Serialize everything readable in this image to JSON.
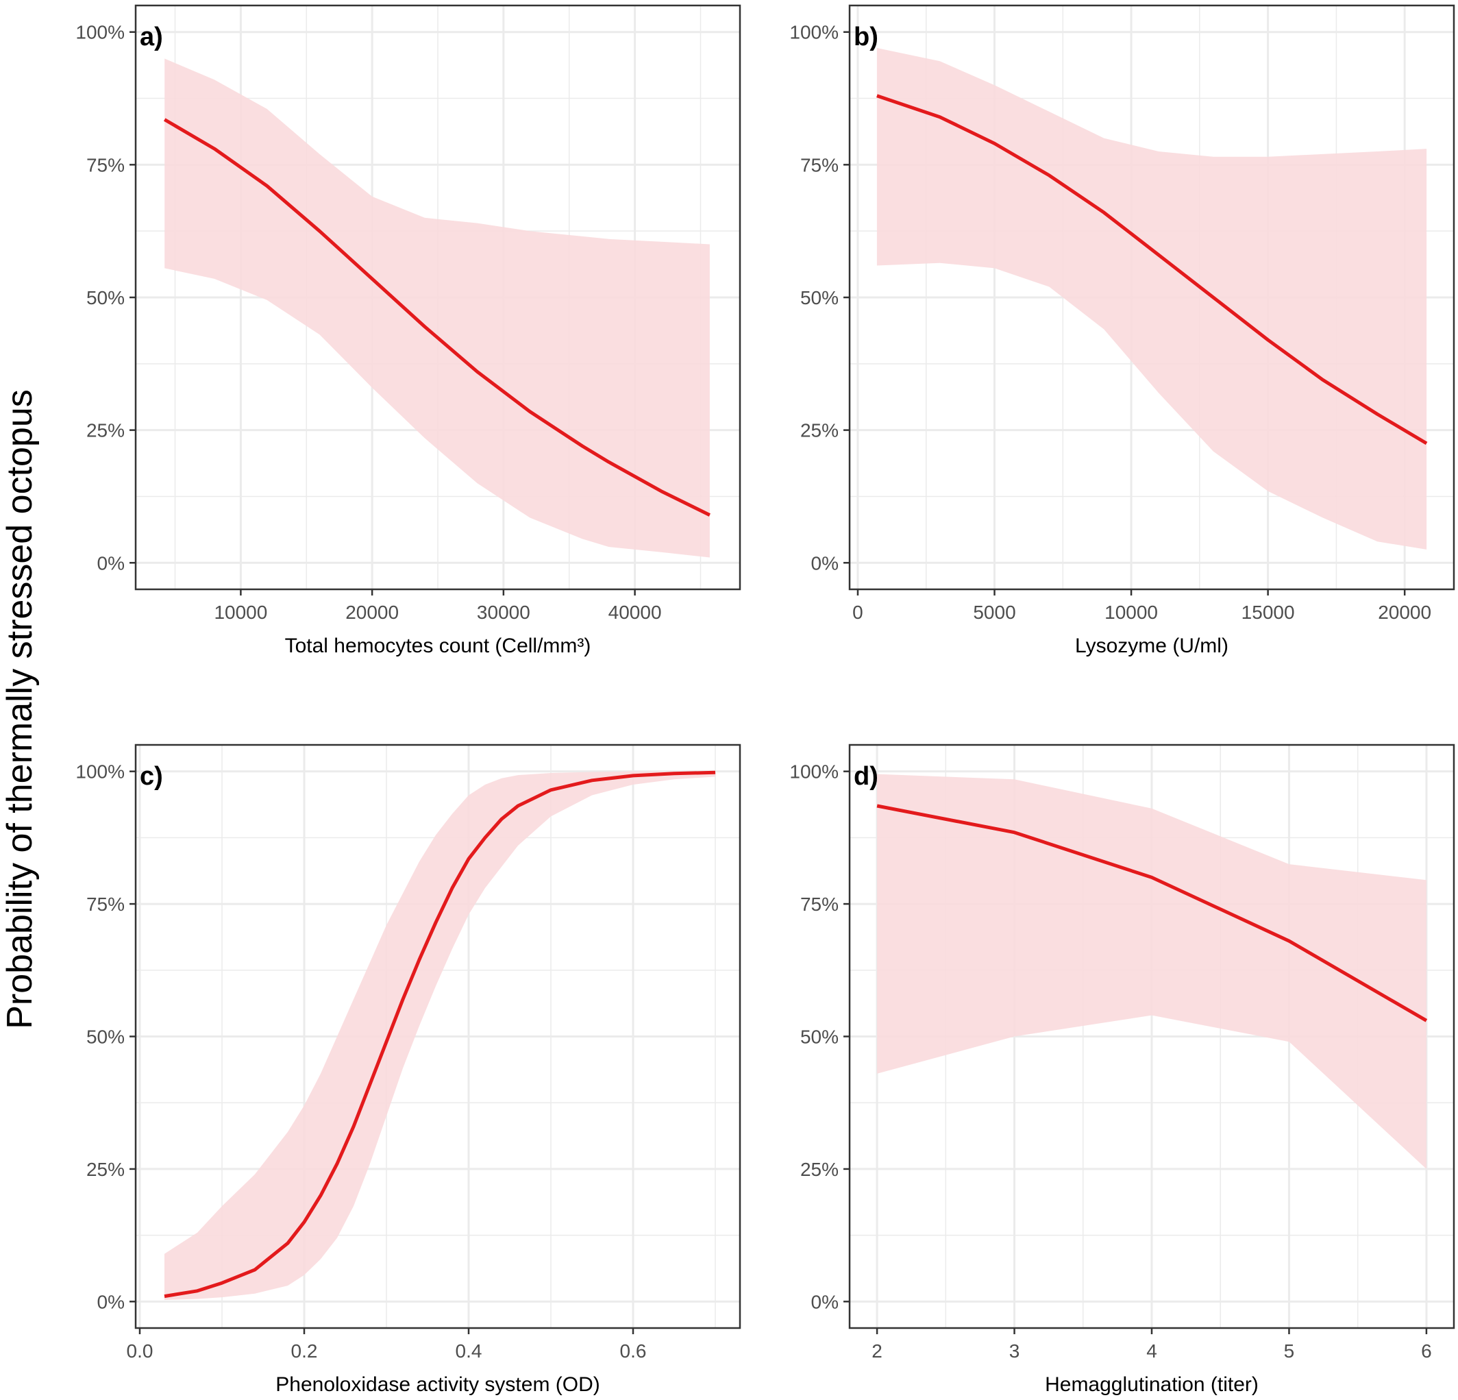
{
  "figure": {
    "shared_ylabel": "Probability of thermally stressed octopus",
    "line_color": "#e31a1c",
    "band_color": "#fadadd",
    "grid_color": "#ebebeb"
  },
  "chart_data": [
    {
      "type": "line",
      "panel": "a)",
      "xlabel": "Total hemocytes count (Cell/mm³)",
      "ylabel": "Probability of thermally stressed octopus",
      "xlim": [
        2000,
        48000
      ],
      "ylim": [
        -0.05,
        1.05
      ],
      "xticks": [
        10000,
        20000,
        30000,
        40000
      ],
      "xtick_labels": [
        "10000",
        "20000",
        "30000",
        "40000"
      ],
      "yticks": [
        0,
        0.25,
        0.5,
        0.75,
        1.0
      ],
      "ytick_labels": [
        "0%",
        "25%",
        "50%",
        "75%",
        "100%"
      ],
      "grid": true,
      "series": [
        {
          "x": [
            4200,
            8000,
            12000,
            16000,
            20000,
            24000,
            28000,
            32000,
            36000,
            38000,
            42000,
            45700
          ],
          "y": [
            0.835,
            0.78,
            0.71,
            0.625,
            0.535,
            0.445,
            0.36,
            0.285,
            0.22,
            0.19,
            0.135,
            0.09
          ],
          "lower": [
            0.555,
            0.535,
            0.495,
            0.43,
            0.33,
            0.235,
            0.15,
            0.085,
            0.045,
            0.03,
            0.02,
            0.01
          ],
          "upper": [
            0.95,
            0.91,
            0.855,
            0.77,
            0.69,
            0.65,
            0.64,
            0.625,
            0.615,
            0.61,
            0.605,
            0.6
          ]
        }
      ]
    },
    {
      "type": "line",
      "panel": "b)",
      "xlabel": "Lysozyme (U/ml)",
      "ylabel": "Probability of thermally stressed octopus",
      "xlim": [
        -300,
        21800
      ],
      "ylim": [
        -0.05,
        1.05
      ],
      "xticks": [
        0,
        5000,
        10000,
        15000,
        20000
      ],
      "xtick_labels": [
        "0",
        "5000",
        "10000",
        "15000",
        "20000"
      ],
      "yticks": [
        0,
        0.25,
        0.5,
        0.75,
        1.0
      ],
      "ytick_labels": [
        "0%",
        "25%",
        "50%",
        "75%",
        "100%"
      ],
      "grid": true,
      "series": [
        {
          "x": [
            700,
            3000,
            5000,
            7000,
            9000,
            11000,
            13000,
            15000,
            17000,
            19000,
            20800
          ],
          "y": [
            0.88,
            0.84,
            0.79,
            0.73,
            0.66,
            0.58,
            0.5,
            0.42,
            0.345,
            0.28,
            0.225
          ],
          "lower": [
            0.56,
            0.565,
            0.555,
            0.52,
            0.44,
            0.32,
            0.21,
            0.135,
            0.085,
            0.04,
            0.025
          ],
          "upper": [
            0.97,
            0.945,
            0.9,
            0.85,
            0.8,
            0.775,
            0.765,
            0.765,
            0.77,
            0.775,
            0.78
          ]
        }
      ]
    },
    {
      "type": "line",
      "panel": "c)",
      "xlabel": "Phenoloxidase activity system (OD)",
      "ylabel": "Probability of thermally stressed octopus",
      "xlim": [
        -0.005,
        0.73
      ],
      "ylim": [
        -0.05,
        1.05
      ],
      "xticks": [
        0.0,
        0.2,
        0.4,
        0.6
      ],
      "xtick_labels": [
        "0.0",
        "0.2",
        "0.4",
        "0.6"
      ],
      "yticks": [
        0,
        0.25,
        0.5,
        0.75,
        1.0
      ],
      "ytick_labels": [
        "0%",
        "25%",
        "50%",
        "75%",
        "100%"
      ],
      "grid": true,
      "series": [
        {
          "x": [
            0.03,
            0.07,
            0.1,
            0.14,
            0.18,
            0.2,
            0.22,
            0.24,
            0.26,
            0.28,
            0.3,
            0.32,
            0.34,
            0.36,
            0.38,
            0.4,
            0.42,
            0.44,
            0.46,
            0.5,
            0.55,
            0.6,
            0.65,
            0.7
          ],
          "y": [
            0.01,
            0.02,
            0.035,
            0.06,
            0.11,
            0.15,
            0.2,
            0.26,
            0.33,
            0.41,
            0.49,
            0.57,
            0.645,
            0.715,
            0.78,
            0.835,
            0.875,
            0.91,
            0.935,
            0.965,
            0.983,
            0.992,
            0.996,
            0.998
          ],
          "lower": [
            0.003,
            0.005,
            0.008,
            0.015,
            0.03,
            0.05,
            0.08,
            0.12,
            0.18,
            0.26,
            0.35,
            0.44,
            0.52,
            0.595,
            0.665,
            0.73,
            0.78,
            0.82,
            0.86,
            0.915,
            0.955,
            0.975,
            0.985,
            0.99
          ],
          "upper": [
            0.09,
            0.13,
            0.18,
            0.24,
            0.32,
            0.37,
            0.43,
            0.5,
            0.57,
            0.64,
            0.71,
            0.77,
            0.83,
            0.88,
            0.92,
            0.955,
            0.975,
            0.987,
            0.993,
            0.997,
            0.999,
            1.0,
            1.0,
            1.0
          ]
        }
      ]
    },
    {
      "type": "line",
      "panel": "d)",
      "xlabel": "Hemagglutination (titer)",
      "ylabel": "Probability of thermally stressed octopus",
      "xlim": [
        1.8,
        6.2
      ],
      "ylim": [
        -0.05,
        1.05
      ],
      "xticks": [
        2,
        3,
        4,
        5,
        6
      ],
      "xtick_labels": [
        "2",
        "3",
        "4",
        "5",
        "6"
      ],
      "yticks": [
        0,
        0.25,
        0.5,
        0.75,
        1.0
      ],
      "ytick_labels": [
        "0%",
        "25%",
        "50%",
        "75%",
        "100%"
      ],
      "grid": true,
      "series": [
        {
          "x": [
            2,
            3,
            4,
            5,
            6
          ],
          "y": [
            0.935,
            0.885,
            0.8,
            0.68,
            0.53
          ],
          "lower": [
            0.43,
            0.5,
            0.54,
            0.49,
            0.25
          ],
          "upper": [
            0.995,
            0.985,
            0.93,
            0.825,
            0.795
          ]
        }
      ]
    }
  ]
}
